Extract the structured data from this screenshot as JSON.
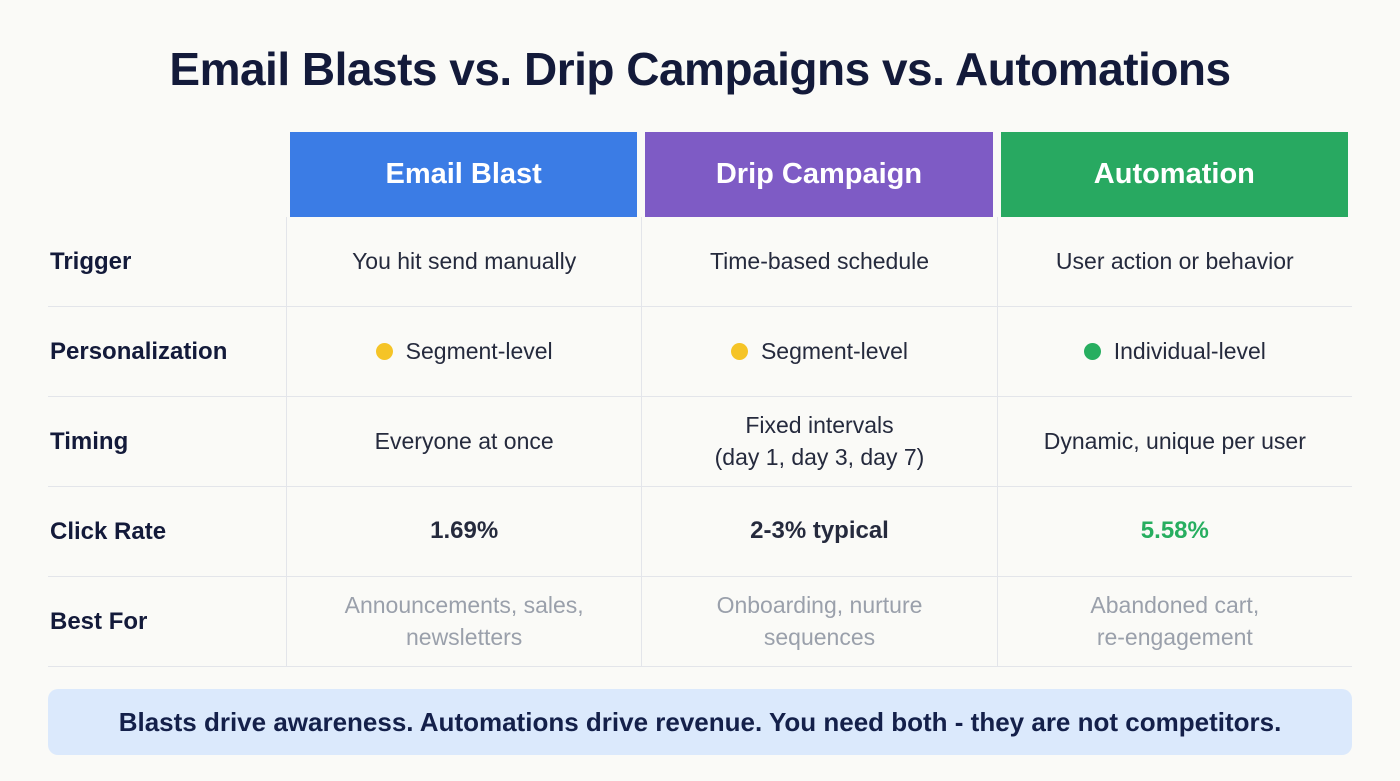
{
  "chart_data": {
    "type": "table",
    "title": "Email Blasts vs. Drip Campaigns vs. Automations",
    "columns": [
      {
        "label": "Email Blast",
        "color": "#3b7ce5"
      },
      {
        "label": "Drip Campaign",
        "color": "#7e5bc5"
      },
      {
        "label": "Automation",
        "color": "#28a961"
      }
    ],
    "rows": [
      {
        "label": "Trigger",
        "cells": [
          {
            "text": "You hit send manually"
          },
          {
            "text": "Time-based schedule"
          },
          {
            "text": "User action or behavior"
          }
        ]
      },
      {
        "label": "Personalization",
        "cells": [
          {
            "text": "Segment-level",
            "dot": "yellow",
            "dot_color": "#f5c427"
          },
          {
            "text": "Segment-level",
            "dot": "yellow",
            "dot_color": "#f5c427"
          },
          {
            "text": "Individual-level",
            "dot": "green",
            "dot_color": "#27ae60"
          }
        ]
      },
      {
        "label": "Timing",
        "cells": [
          {
            "text": "Everyone at once"
          },
          {
            "text": "Fixed intervals\n(day 1, day 3, day 7)"
          },
          {
            "text": "Dynamic, unique per user"
          }
        ]
      },
      {
        "label": "Click Rate",
        "cells": [
          {
            "text": "1.69%"
          },
          {
            "text": "2-3% typical"
          },
          {
            "text": "5.58%",
            "color": "#27ae60"
          }
        ]
      },
      {
        "label": "Best For",
        "cells": [
          {
            "text": "Announcements, sales,\nnewsletters"
          },
          {
            "text": "Onboarding, nurture\nsequences"
          },
          {
            "text": "Abandoned cart,\nre-engagement"
          }
        ]
      }
    ],
    "footnote": "Blasts drive awareness. Automations drive revenue. You need both - they are not competitors."
  },
  "colors": {
    "background": "#fafaf7",
    "title_text": "#131a3a",
    "body_text": "#252a3d",
    "muted_text": "#9aa0ab",
    "grid_line": "#e3e5ea",
    "callout_bg": "#dbe9fc",
    "email_blast_header": "#3b7ce5",
    "drip_campaign_header": "#7e5bc5",
    "automation_header": "#28a961",
    "segment_level_dot": "#f5c427",
    "individual_level_dot": "#27ae60",
    "highlight_green": "#27ae60"
  }
}
